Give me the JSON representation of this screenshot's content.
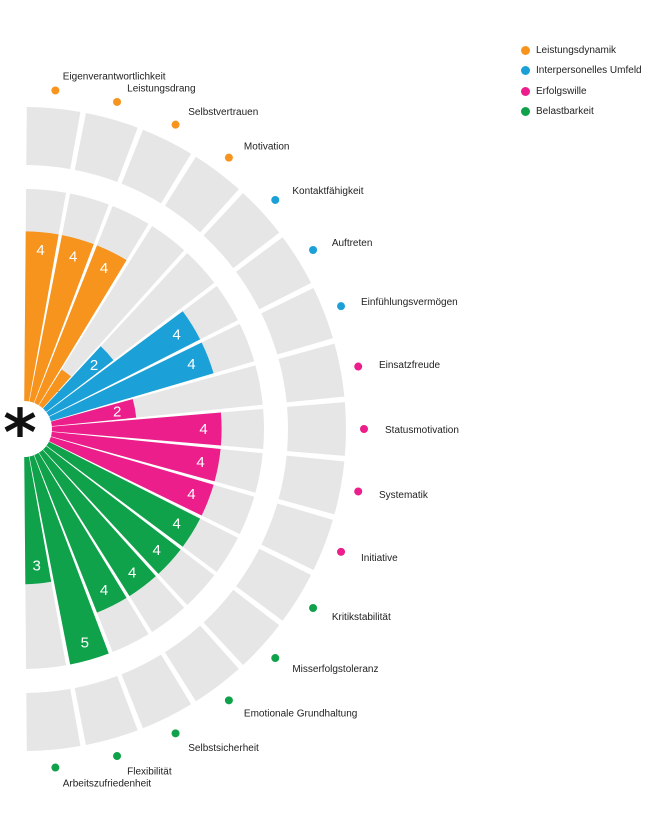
{
  "colors": {
    "track": "#e6e6e6",
    "background": "#ffffff",
    "label_text": "#222222"
  },
  "center_symbol": "*",
  "legend": [
    {
      "label": "Leistungsdynamik",
      "color": "#f7941d"
    },
    {
      "label": "Interpersonelles Umfeld",
      "color": "#1ba1d8"
    },
    {
      "label": "Erfolgswille",
      "color": "#ec1e8b"
    },
    {
      "label": "Belastbarkeit",
      "color": "#0fa24a"
    }
  ],
  "chart_data": {
    "type": "radial-bar",
    "title": "",
    "scale_max": 5,
    "categories": [
      "Eigenverantwortlichkeit",
      "Leistungsdrang",
      "Selbstvertrauen",
      "Motivation",
      "Kontaktfähigkeit",
      "Auftreten",
      "Einfühlungsvermögen",
      "Einsatzfreude",
      "Statusmotivation",
      "Systematik",
      "Initiative",
      "Kritikstabilität",
      "Misserfolgstoleranz",
      "Emotionale Grundhaltung",
      "Selbstsicherheit",
      "Flexibilität",
      "Arbeitszufriedenheit"
    ],
    "groups": [
      0,
      0,
      0,
      0,
      1,
      1,
      1,
      2,
      2,
      2,
      2,
      3,
      3,
      3,
      3,
      3,
      3
    ],
    "series": [
      {
        "values": [
          4,
          4,
          4,
          1,
          2,
          4,
          4,
          2,
          4,
          4,
          4,
          4,
          4,
          4,
          4,
          5,
          3
        ]
      }
    ]
  }
}
